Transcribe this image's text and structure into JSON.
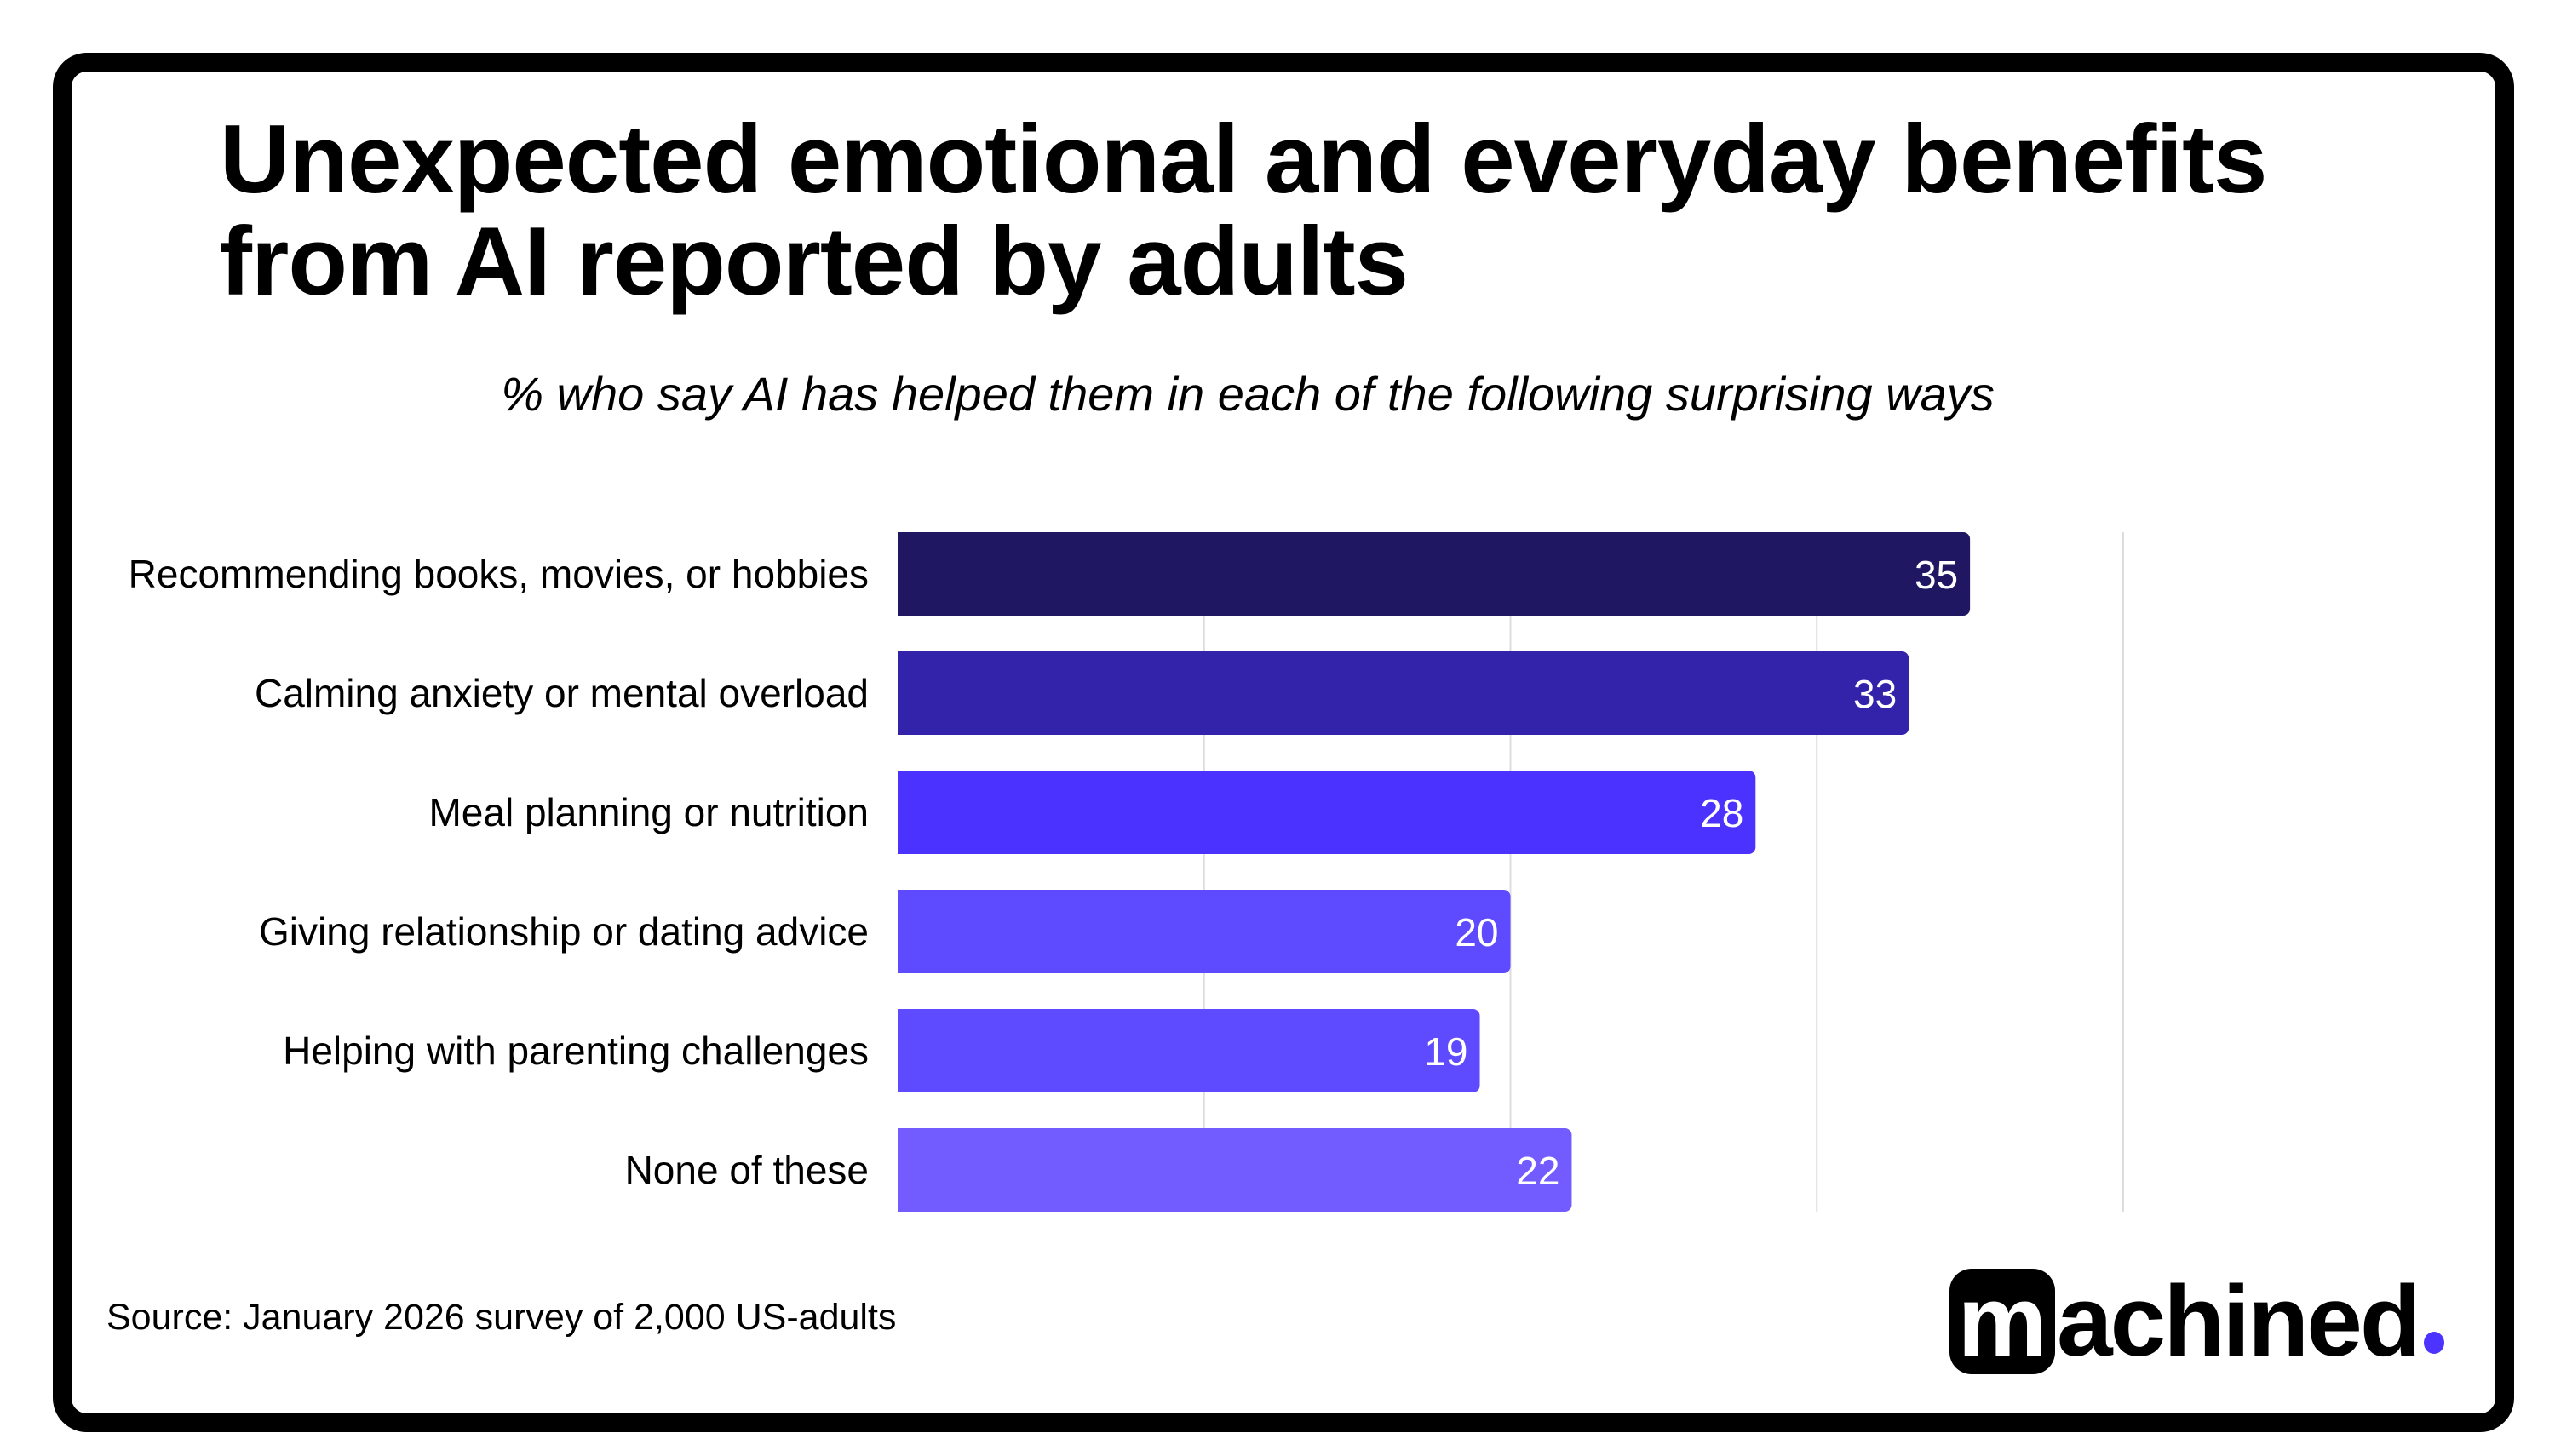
{
  "title": "Unexpected emotional and everyday benefits from AI reported by adults",
  "subtitle": "% who say AI has helped them in each of the following surprising ways",
  "source": "Source:  January 2026 survey of 2,000 US-adults",
  "logo": {
    "text": "machined.",
    "accent": "#4d33ff"
  },
  "chart_data": {
    "type": "bar",
    "orientation": "horizontal",
    "title": "Unexpected emotional and everyday benefits from AI reported by adults",
    "subtitle": "% who say AI has helped them in each of the following surprising ways",
    "categories": [
      "Recommending books, movies, or hobbies",
      "Calming anxiety or mental overload",
      "Meal planning or nutrition",
      "Giving relationship or dating advice",
      "Helping with parenting challenges",
      "None of these"
    ],
    "values": [
      35,
      33,
      28,
      20,
      19,
      22
    ],
    "colors": [
      "#1f1762",
      "#3323ab",
      "#4b32ff",
      "#5f4bff",
      "#5f4bff",
      "#725cff"
    ],
    "xlim": [
      0,
      40
    ],
    "gridlines": [
      10,
      20,
      30,
      40
    ],
    "grid": true,
    "data_labels": true,
    "xlabel": "",
    "ylabel": ""
  }
}
